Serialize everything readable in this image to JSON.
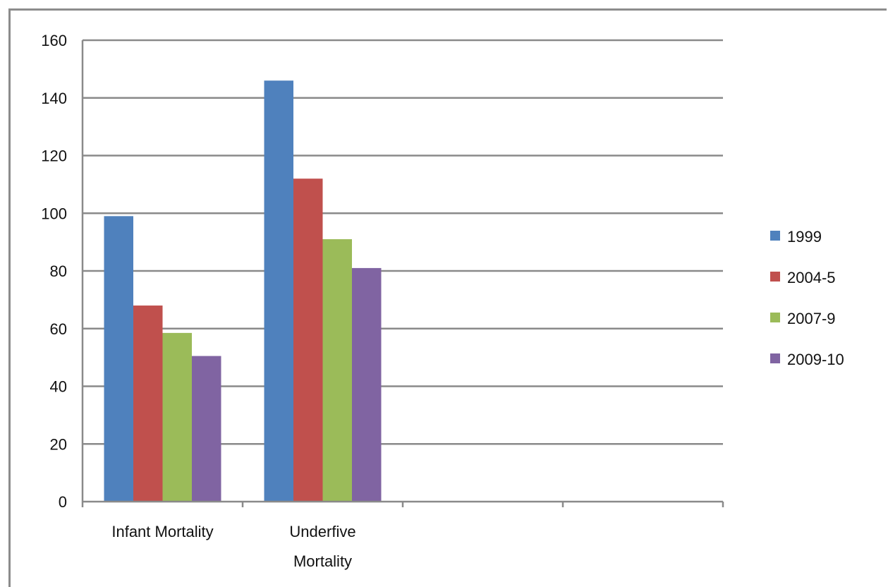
{
  "chart_data": {
    "type": "bar",
    "categories": [
      "Infant Mortality",
      "Underfive Mortality",
      "",
      ""
    ],
    "category_label_lines": [
      [
        "Infant Mortality"
      ],
      [
        "Underfive",
        "Mortality"
      ],
      [
        ""
      ],
      [
        ""
      ]
    ],
    "series": [
      {
        "name": "1999",
        "color": "#4f81bd",
        "values": [
          99,
          146,
          null,
          null
        ]
      },
      {
        "name": "2004-5",
        "color": "#c0504d",
        "values": [
          68,
          112,
          null,
          null
        ]
      },
      {
        "name": "2007-9",
        "color": "#9bbb59",
        "values": [
          58.5,
          91,
          null,
          null
        ]
      },
      {
        "name": "2009-10",
        "color": "#8064a2",
        "values": [
          50.5,
          81,
          null,
          null
        ]
      }
    ],
    "title": "",
    "xlabel": "",
    "ylabel": "",
    "ylim": [
      0,
      160
    ],
    "yticks": [
      "0",
      "20",
      "40",
      "60",
      "80",
      "100",
      "120",
      "140",
      "160"
    ],
    "grid": true,
    "legend_position": "right"
  }
}
